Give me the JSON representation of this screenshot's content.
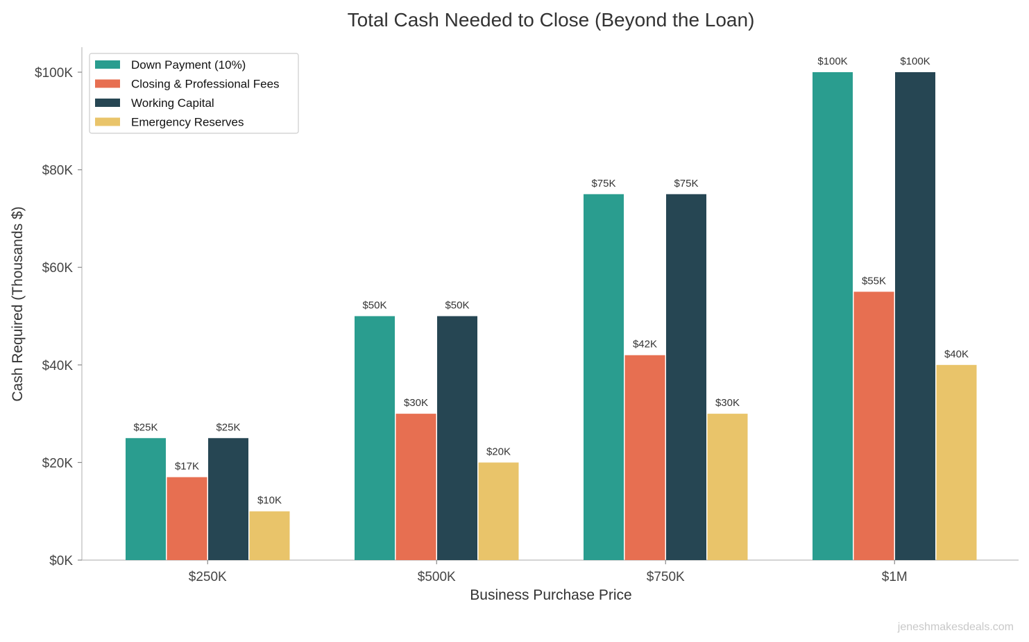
{
  "chart_data": {
    "type": "bar",
    "title": "Total Cash Needed to Close (Beyond the Loan)",
    "xlabel": "Business Purchase Price",
    "ylabel": "Cash Required (Thousands $)",
    "categories": [
      "$250K",
      "$500K",
      "$750K",
      "$1M"
    ],
    "ylim": [
      0,
      105
    ],
    "yticks": [
      0,
      20,
      40,
      60,
      80,
      100
    ],
    "ytick_labels": [
      "$0K",
      "$20K",
      "$40K",
      "$60K",
      "$80K",
      "$100K"
    ],
    "series": [
      {
        "name": "Down Payment (10%)",
        "color": "#2a9d8f",
        "values": [
          25,
          50,
          75,
          100
        ],
        "labels": [
          "$25K",
          "$50K",
          "$75K",
          "$100K"
        ]
      },
      {
        "name": "Closing & Professional Fees",
        "color": "#e76f51",
        "values": [
          17,
          30,
          42,
          55
        ],
        "labels": [
          "$17K",
          "$30K",
          "$42K",
          "$55K"
        ]
      },
      {
        "name": "Working Capital",
        "color": "#264653",
        "values": [
          25,
          50,
          75,
          100
        ],
        "labels": [
          "$25K",
          "$50K",
          "$75K",
          "$100K"
        ]
      },
      {
        "name": "Emergency Reserves",
        "color": "#e9c46a",
        "values": [
          10,
          20,
          30,
          40
        ],
        "labels": [
          "$10K",
          "$20K",
          "$30K",
          "$40K"
        ]
      }
    ],
    "legend_position": "top-left",
    "grid": false
  },
  "watermark": "jeneshmakesdeals.com"
}
